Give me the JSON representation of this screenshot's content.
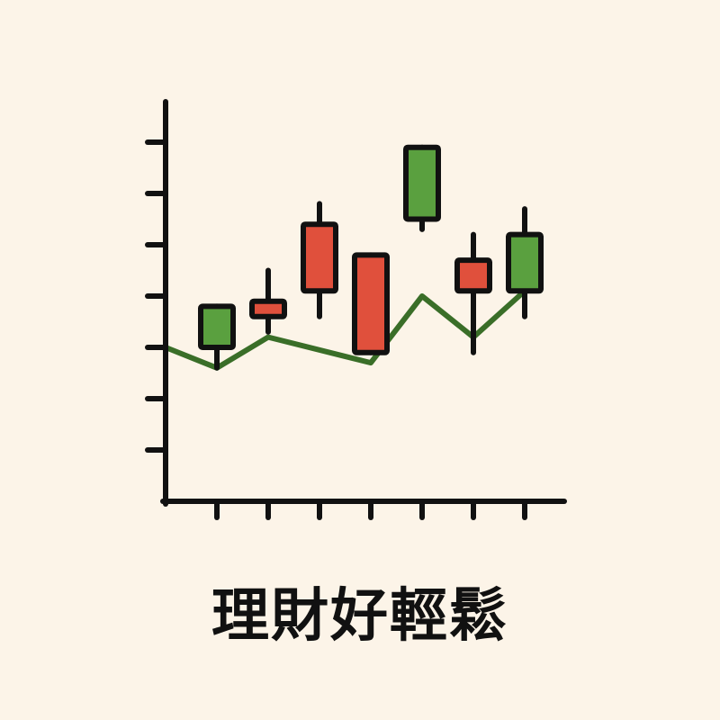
{
  "caption": "理財好輕鬆",
  "colors": {
    "background": "#fcf4e8",
    "up": "#5aa03f",
    "down": "#e0503c",
    "trend": "#3a6e28",
    "stroke": "#111111"
  },
  "chart_data": {
    "type": "candlestick",
    "title": "",
    "xlabel": "",
    "ylabel": "",
    "grid": false,
    "x": [
      1,
      2,
      3,
      4,
      5,
      6,
      7
    ],
    "ylim": [
      0,
      8
    ],
    "candles": [
      {
        "open": 3.0,
        "close": 3.8,
        "high": 3.8,
        "low": 2.6,
        "direction": "up"
      },
      {
        "open": 3.9,
        "close": 3.6,
        "high": 4.5,
        "low": 3.3,
        "direction": "down"
      },
      {
        "open": 5.4,
        "close": 4.1,
        "high": 5.8,
        "low": 3.6,
        "direction": "down"
      },
      {
        "open": 4.8,
        "close": 2.9,
        "high": 4.8,
        "low": 2.9,
        "direction": "down"
      },
      {
        "open": 5.5,
        "close": 6.9,
        "high": 6.9,
        "low": 5.3,
        "direction": "up"
      },
      {
        "open": 4.7,
        "close": 4.1,
        "high": 5.2,
        "low": 2.9,
        "direction": "down"
      },
      {
        "open": 4.1,
        "close": 5.2,
        "high": 5.7,
        "low": 3.6,
        "direction": "up"
      }
    ],
    "trend_line": [
      {
        "x": 0,
        "y": 3.0
      },
      {
        "x": 1,
        "y": 2.6
      },
      {
        "x": 2,
        "y": 3.2
      },
      {
        "x": 4,
        "y": 2.7
      },
      {
        "x": 5,
        "y": 4.0
      },
      {
        "x": 6,
        "y": 3.2
      },
      {
        "x": 7,
        "y": 4.1
      }
    ]
  }
}
